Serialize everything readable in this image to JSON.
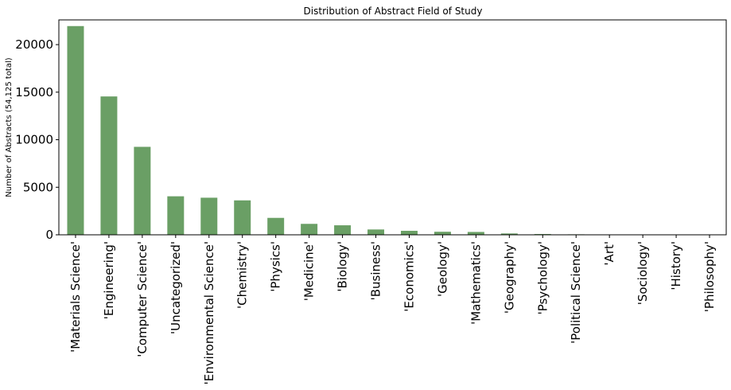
{
  "chart_data": {
    "type": "bar",
    "title": "Distribution of Abstract Field of Study",
    "xlabel": "",
    "ylabel": "Number of Abstracts (54,125 total)",
    "categories": [
      "'Materials Science'",
      "'Engineering'",
      "'Computer Science'",
      "'Uncategorized'",
      "'Environmental Science'",
      "'Chemistry'",
      "'Physics'",
      "'Medicine'",
      "'Biology'",
      "'Business'",
      "'Economics'",
      "'Geology'",
      "'Mathematics'",
      "'Geography'",
      "'Psychology'",
      "'Political Science'",
      "'Art'",
      "'Sociology'",
      "'History'",
      "'Philosophy'"
    ],
    "values": [
      21950,
      14550,
      9250,
      4050,
      3900,
      3620,
      1780,
      1150,
      1000,
      560,
      420,
      320,
      300,
      140,
      80,
      50,
      40,
      30,
      25,
      10
    ],
    "ylim": [
      0,
      22600
    ],
    "yticks": [
      0,
      5000,
      10000,
      15000,
      20000
    ],
    "ytick_labels": [
      "0",
      "5000",
      "10000",
      "15000",
      "20000"
    ],
    "grid": false,
    "bar_color": "#6a9f65"
  }
}
